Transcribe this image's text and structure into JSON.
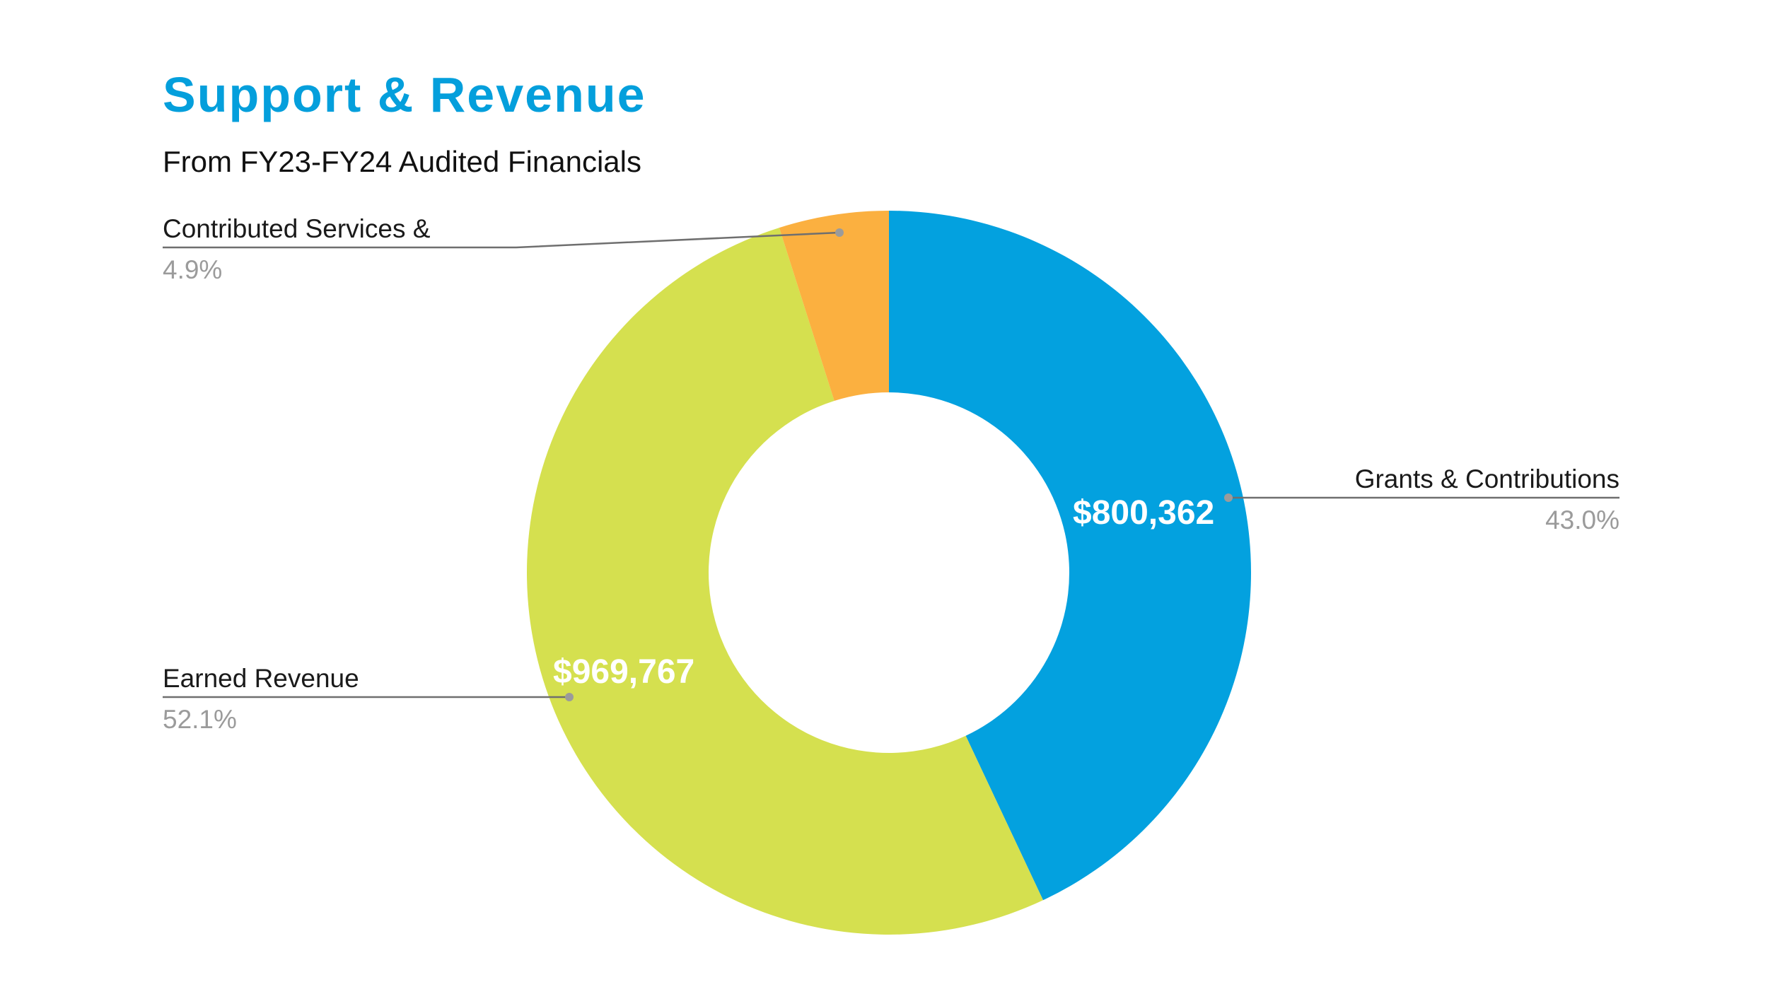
{
  "chart_data": {
    "type": "pie",
    "variant": "donut",
    "title": "Support & Revenue",
    "subtitle": "From FY23-FY24 Audited Financials",
    "slices": [
      {
        "name": "Grants & Contributions",
        "percent": "43.0%",
        "share": 0.43,
        "value_label": "$800,362",
        "color": "#03a1df"
      },
      {
        "name": "Earned Revenue",
        "percent": "52.1%",
        "share": 0.521,
        "value_label": "$969,767",
        "color": "#d5e04f"
      },
      {
        "name": "Contributed Services &",
        "percent": "4.9%",
        "share": 0.049,
        "value_label": "",
        "color": "#fbb040"
      }
    ],
    "title_color": "#049fdc",
    "leader_color": "#6f6f6f"
  }
}
